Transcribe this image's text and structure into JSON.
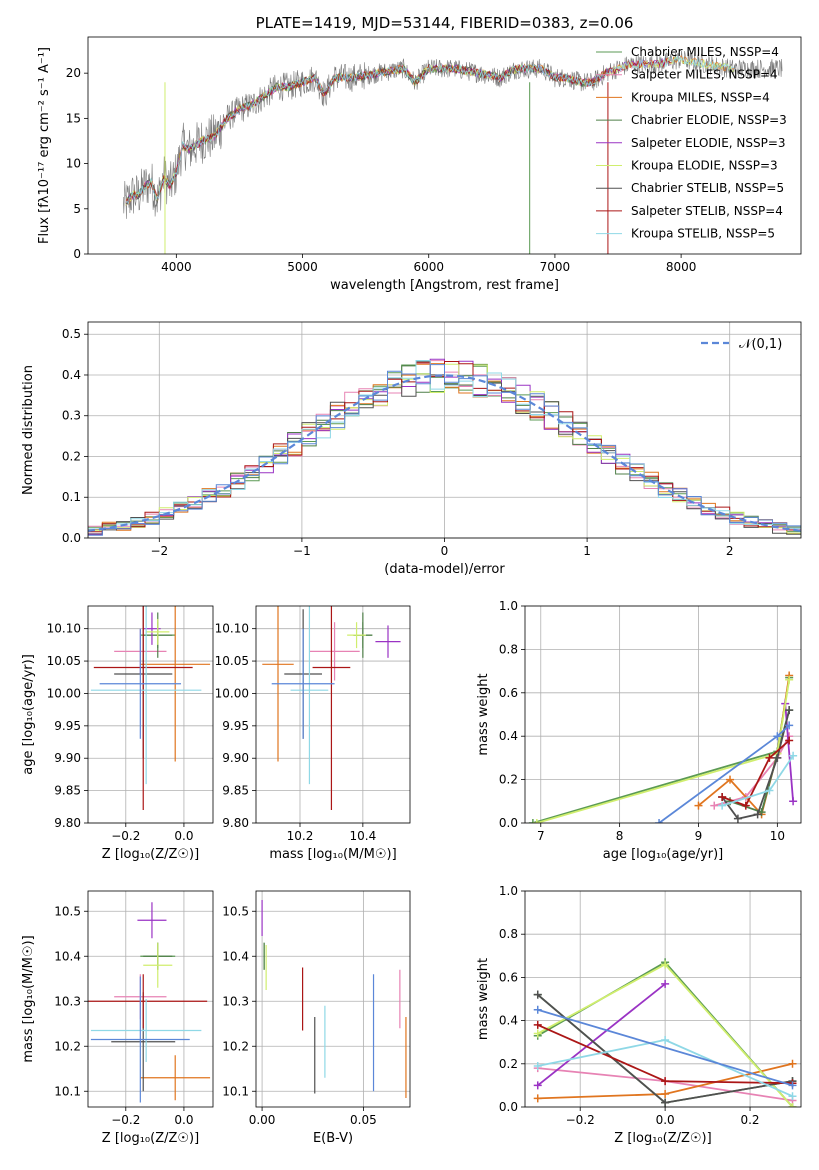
{
  "colors": [
    "#5b9a54",
    "#e783b4",
    "#e0751f",
    "#4f7f49",
    "#9a33c4",
    "#d0ee6e",
    "#505050",
    "#ab1616",
    "#8fd8e6",
    "#5b87d8"
  ],
  "chart_data": [
    {
      "id": "spectrum",
      "type": "line",
      "title": "PLATE=1419, MJD=53144, FIBERID=0383, z=0.06",
      "xlabel": "wavelength [Angstrom, rest frame]",
      "ylabel": "Flux [fλ10⁻¹⁷ erg cm⁻² s⁻¹ A⁻¹]",
      "xlim": [
        3300,
        8950
      ],
      "ylim": [
        0,
        24
      ],
      "xticks": [
        "4000",
        "5000",
        "6000",
        "7000",
        "8000"
      ],
      "yticks": [
        "0",
        "5",
        "10",
        "15",
        "20"
      ],
      "grid": false,
      "legend_position": "right",
      "series": [
        {
          "name": "Chabrier MILES, NSSP=4",
          "color": "#5b9a54"
        },
        {
          "name": "Salpeter MILES, NSSP=4",
          "color": "#e783b4"
        },
        {
          "name": "Kroupa MILES, NSSP=4",
          "color": "#e0751f"
        },
        {
          "name": "Chabrier ELODIE, NSSP=3",
          "color": "#4f7f49"
        },
        {
          "name": "Salpeter ELODIE, NSSP=3",
          "color": "#9a33c4"
        },
        {
          "name": "Kroupa ELODIE, NSSP=3",
          "color": "#d0ee6e"
        },
        {
          "name": "Chabrier STELIB, NSSP=5",
          "color": "#505050"
        },
        {
          "name": "Salpeter STELIB, NSSP=4",
          "color": "#ab1616"
        },
        {
          "name": "Kroupa STELIB, NSSP=5",
          "color": "#8fd8e6"
        }
      ],
      "data_shape": {
        "x": [
          3600,
          3650,
          3700,
          3750,
          3800,
          3850,
          3900,
          3950,
          4000,
          4050,
          4100,
          4200,
          4300,
          4400,
          4500,
          4600,
          4700,
          4800,
          4900,
          5000,
          5100,
          5175,
          5250,
          5400,
          5600,
          5800,
          5890,
          6000,
          6200,
          6400,
          6563,
          6700,
          6900,
          7000,
          7100,
          7200,
          7300,
          7400,
          7600,
          7800,
          8000,
          8200,
          8400,
          8600,
          8800
        ],
        "y": [
          5.5,
          6.5,
          6.5,
          7.5,
          8.0,
          6.0,
          8.5,
          7.5,
          9.0,
          12.0,
          11.5,
          12.5,
          13.0,
          15.0,
          16.0,
          16.5,
          17.5,
          18.5,
          18.5,
          19.0,
          19.5,
          17.5,
          19.5,
          19.5,
          20.0,
          20.5,
          19.0,
          20.5,
          20.5,
          20.0,
          19.5,
          20.5,
          20.5,
          19.5,
          19.5,
          19.0,
          19.0,
          20.0,
          21.0,
          21.0,
          21.5,
          21.0,
          20.5,
          20.5,
          20.5
        ]
      }
    },
    {
      "id": "residuals",
      "type": "histogram",
      "xlabel": "(data-model)/error",
      "ylabel": "Normed distribution",
      "xlim": [
        -2.5,
        2.5
      ],
      "ylim": [
        0,
        0.53
      ],
      "xticks": [
        "−2",
        "−1",
        "0",
        "1",
        "2"
      ],
      "yticks": [
        "0.0",
        "0.1",
        "0.2",
        "0.3",
        "0.4",
        "0.5"
      ],
      "grid": true,
      "legend_position": "top-right",
      "curve": {
        "name": "𝒩(0,1)",
        "color": "#5b87d8",
        "mean": 0,
        "sigma": 1
      },
      "bin_width": 0.1
    },
    {
      "id": "age-vs-Z",
      "type": "errorbar",
      "xlabel": "Z [log₁₀(Z/Z☉)]",
      "ylabel": "age  [log₁₀(age/yr)]",
      "xlim": [
        -0.33,
        0.1
      ],
      "ylim": [
        9.8,
        10.135
      ],
      "xticks": [
        "−0.2",
        "0.0"
      ],
      "yticks": [
        "9.80",
        "9.85",
        "9.90",
        "9.95",
        "10.00",
        "10.05",
        "10.10"
      ],
      "grid": true,
      "points": [
        {
          "color": "#5b9a54",
          "x": -0.09,
          "xerr": 0.06,
          "y": 10.09,
          "yerr": 0.02
        },
        {
          "color": "#e783b4",
          "x": -0.15,
          "xerr": 0.09,
          "y": 10.065,
          "yerr": 0.035
        },
        {
          "color": "#e0751f",
          "x": -0.03,
          "xerr": 0.12,
          "y": 10.045,
          "yerr": 0.15
        },
        {
          "color": "#4f7f49",
          "x": -0.09,
          "xerr": 0.05,
          "y": 10.09,
          "yerr": 0.035
        },
        {
          "color": "#9a33c4",
          "x": -0.11,
          "xerr": 0.03,
          "y": 10.1,
          "yerr": 0.025
        },
        {
          "color": "#d0ee6e",
          "x": -0.09,
          "xerr": 0.04,
          "y": 10.095,
          "yerr": 0.02
        },
        {
          "color": "#505050",
          "x": -0.14,
          "xerr": 0.1,
          "y": 10.03,
          "yerr": 0.13
        },
        {
          "color": "#ab1616",
          "x": -0.14,
          "xerr": 0.17,
          "y": 10.04,
          "yerr": 0.22
        },
        {
          "color": "#8fd8e6",
          "x": -0.13,
          "xerr": 0.19,
          "y": 10.005,
          "yerr": 0.145
        },
        {
          "color": "#5b87d8",
          "x": -0.15,
          "xerr": 0.14,
          "y": 10.015,
          "yerr": 0.085
        }
      ]
    },
    {
      "id": "age-vs-mass",
      "type": "errorbar",
      "xlabel": "mass [log₁₀(M/M☉)]",
      "ylabel": "",
      "xlim": [
        10.06,
        10.55
      ],
      "ylim": [
        9.8,
        10.135
      ],
      "xticks": [
        "10.2",
        "10.4"
      ],
      "yticks": [
        "9.80",
        "9.85",
        "9.90",
        "9.95",
        "10.00",
        "10.05",
        "10.10"
      ],
      "grid": true,
      "points": [
        {
          "color": "#5b9a54",
          "x": 10.4,
          "xerr": 0.03,
          "y": 10.09,
          "yerr": 0.02
        },
        {
          "color": "#e783b4",
          "x": 10.31,
          "xerr": 0.08,
          "y": 10.065,
          "yerr": 0.045
        },
        {
          "color": "#e0751f",
          "x": 10.13,
          "xerr": 0.05,
          "y": 10.045,
          "yerr": 0.15
        },
        {
          "color": "#4f7f49",
          "x": 10.4,
          "xerr": 0.03,
          "y": 10.09,
          "yerr": 0.035
        },
        {
          "color": "#9a33c4",
          "x": 10.48,
          "xerr": 0.04,
          "y": 10.08,
          "yerr": 0.025
        },
        {
          "color": "#d0ee6e",
          "x": 10.38,
          "xerr": 0.03,
          "y": 10.09,
          "yerr": 0.02
        },
        {
          "color": "#505050",
          "x": 10.21,
          "xerr": 0.06,
          "y": 10.03,
          "yerr": 0.1
        },
        {
          "color": "#ab1616",
          "x": 10.3,
          "xerr": 0.06,
          "y": 10.04,
          "yerr": 0.22
        },
        {
          "color": "#8fd8e6",
          "x": 10.23,
          "xerr": 0.06,
          "y": 10.005,
          "yerr": 0.145
        },
        {
          "color": "#5b87d8",
          "x": 10.21,
          "xerr": 0.1,
          "y": 10.015,
          "yerr": 0.085
        }
      ]
    },
    {
      "id": "massweight-vs-age",
      "type": "line",
      "xlabel": "age  [log₁₀(age/yr)]",
      "ylabel": "mass weight",
      "xlim": [
        6.8,
        10.3
      ],
      "ylim": [
        0,
        1.0
      ],
      "xticks": [
        "7",
        "8",
        "9",
        "10"
      ],
      "yticks": [
        "0.0",
        "0.2",
        "0.4",
        "0.6",
        "0.8",
        "1.0"
      ],
      "grid": true,
      "series": [
        {
          "color": "#5b9a54",
          "x": [
            6.9,
            10.0,
            10.15
          ],
          "y": [
            0.0,
            0.33,
            0.67
          ]
        },
        {
          "color": "#e783b4",
          "x": [
            9.2,
            9.6,
            10.0,
            10.15
          ],
          "y": [
            0.08,
            0.12,
            0.3,
            0.4
          ]
        },
        {
          "color": "#e0751f",
          "x": [
            9.0,
            9.4,
            9.8,
            10.0,
            10.15
          ],
          "y": [
            0.08,
            0.2,
            0.04,
            0.32,
            0.68
          ]
        },
        {
          "color": "#4f7f49",
          "x": [
            9.4,
            9.8,
            10.15
          ],
          "y": [
            0.1,
            0.05,
            0.52
          ]
        },
        {
          "color": "#9a33c4",
          "x": [
            10.1,
            10.2
          ],
          "y": [
            0.55,
            0.1
          ]
        },
        {
          "color": "#d0ee6e",
          "x": [
            6.95,
            10.0,
            10.15
          ],
          "y": [
            0.0,
            0.32,
            0.66
          ]
        },
        {
          "color": "#505050",
          "x": [
            9.3,
            9.5,
            9.75,
            10.0,
            10.15
          ],
          "y": [
            0.12,
            0.02,
            0.04,
            0.3,
            0.52
          ]
        },
        {
          "color": "#ab1616",
          "x": [
            9.3,
            9.6,
            9.9,
            10.15
          ],
          "y": [
            0.12,
            0.08,
            0.3,
            0.38
          ]
        },
        {
          "color": "#8fd8e6",
          "x": [
            9.3,
            9.9,
            10.2
          ],
          "y": [
            0.08,
            0.15,
            0.31
          ]
        },
        {
          "color": "#5b87d8",
          "x": [
            8.5,
            10.0,
            10.15
          ],
          "y": [
            0.0,
            0.4,
            0.45
          ]
        }
      ]
    },
    {
      "id": "mass-vs-Z",
      "type": "errorbar",
      "xlabel": "Z [log₁₀(Z/Z☉)]",
      "ylabel": "mass [log₁₀(M/M☉)]",
      "xlim": [
        -0.33,
        0.1
      ],
      "ylim": [
        10.065,
        10.545
      ],
      "xticks": [
        "−0.2",
        "0.0"
      ],
      "yticks": [
        "10.1",
        "10.2",
        "10.3",
        "10.4",
        "10.5"
      ],
      "grid": true,
      "points": [
        {
          "color": "#5b9a54",
          "x": -0.09,
          "xerr": 0.06,
          "y": 10.4,
          "yerr": 0.03
        },
        {
          "color": "#e783b4",
          "x": -0.15,
          "xerr": 0.09,
          "y": 10.31,
          "yerr": 0.05
        },
        {
          "color": "#e0751f",
          "x": -0.03,
          "xerr": 0.12,
          "y": 10.13,
          "yerr": 0.05
        },
        {
          "color": "#4f7f49",
          "x": -0.09,
          "xerr": 0.05,
          "y": 10.4,
          "yerr": 0.03
        },
        {
          "color": "#9a33c4",
          "x": -0.11,
          "xerr": 0.05,
          "y": 10.48,
          "yerr": 0.04
        },
        {
          "color": "#d0ee6e",
          "x": -0.09,
          "xerr": 0.05,
          "y": 10.38,
          "yerr": 0.05
        },
        {
          "color": "#505050",
          "x": -0.14,
          "xerr": 0.11,
          "y": 10.21,
          "yerr": 0.11
        },
        {
          "color": "#ab1616",
          "x": -0.14,
          "xerr": 0.22,
          "y": 10.3,
          "yerr": 0.06
        },
        {
          "color": "#8fd8e6",
          "x": -0.13,
          "xerr": 0.19,
          "y": 10.235,
          "yerr": 0.07
        },
        {
          "color": "#5b87d8",
          "x": -0.15,
          "xerr": 0.17,
          "y": 10.215,
          "yerr": 0.14
        }
      ]
    },
    {
      "id": "mass-vs-EBV",
      "type": "errorbar",
      "xlabel": "E(B-V)",
      "ylabel": "",
      "xlim": [
        -0.003,
        0.073
      ],
      "ylim": [
        10.065,
        10.545
      ],
      "xticks": [
        "0.00",
        "0.05"
      ],
      "yticks": [
        "10.1",
        "10.2",
        "10.3",
        "10.4",
        "10.5"
      ],
      "grid": true,
      "points": [
        {
          "color": "#5b9a54",
          "x": 0.001,
          "xerr": 0,
          "y": 10.4,
          "yerr": 0.03
        },
        {
          "color": "#e783b4",
          "x": 0.068,
          "xerr": 0,
          "y": 10.305,
          "yerr": 0.065
        },
        {
          "color": "#e0751f",
          "x": 0.071,
          "xerr": 0,
          "y": 10.175,
          "yerr": 0.09
        },
        {
          "color": "#4f7f49",
          "x": 0.001,
          "xerr": 0,
          "y": 10.4,
          "yerr": 0.03
        },
        {
          "color": "#9a33c4",
          "x": 0.0,
          "xerr": 0,
          "y": 10.485,
          "yerr": 0.04
        },
        {
          "color": "#d0ee6e",
          "x": 0.002,
          "xerr": 0,
          "y": 10.375,
          "yerr": 0.05
        },
        {
          "color": "#505050",
          "x": 0.026,
          "xerr": 0,
          "y": 10.18,
          "yerr": 0.085
        },
        {
          "color": "#ab1616",
          "x": 0.02,
          "xerr": 0,
          "y": 10.305,
          "yerr": 0.07
        },
        {
          "color": "#8fd8e6",
          "x": 0.031,
          "xerr": 0,
          "y": 10.21,
          "yerr": 0.08
        },
        {
          "color": "#5b87d8",
          "x": 0.055,
          "xerr": 0,
          "y": 10.23,
          "yerr": 0.13
        }
      ]
    },
    {
      "id": "massweight-vs-Z",
      "type": "line",
      "xlabel": "Z [log₁₀(Z/Z☉)]",
      "ylabel": "mass weight",
      "xlim": [
        -0.33,
        0.32
      ],
      "ylim": [
        0,
        1.0
      ],
      "xticks": [
        "−0.2",
        "0.0",
        "0.2"
      ],
      "yticks": [
        "0.0",
        "0.2",
        "0.4",
        "0.6",
        "0.8",
        "1.0"
      ],
      "grid": true,
      "series": [
        {
          "color": "#5b9a54",
          "x": [
            -0.3,
            0.0,
            0.3
          ],
          "y": [
            0.33,
            0.67,
            0.0
          ]
        },
        {
          "color": "#e783b4",
          "x": [
            -0.3,
            0.0,
            0.3
          ],
          "y": [
            0.18,
            0.12,
            0.03
          ]
        },
        {
          "color": "#e0751f",
          "x": [
            -0.3,
            0.0,
            0.3
          ],
          "y": [
            0.04,
            0.06,
            0.2
          ]
        },
        {
          "color": "#4f7f49",
          "x": [
            -0.3,
            0.0,
            0.3
          ],
          "y": [
            0.52,
            0.02,
            0.12
          ]
        },
        {
          "color": "#9a33c4",
          "x": [
            -0.3,
            0.0
          ],
          "y": [
            0.1,
            0.57
          ]
        },
        {
          "color": "#d0ee6e",
          "x": [
            -0.3,
            0.0,
            0.3
          ],
          "y": [
            0.34,
            0.66,
            0.0
          ]
        },
        {
          "color": "#505050",
          "x": [
            -0.3,
            0.0,
            0.3
          ],
          "y": [
            0.52,
            0.02,
            0.12
          ]
        },
        {
          "color": "#ab1616",
          "x": [
            -0.3,
            0.0,
            0.3
          ],
          "y": [
            0.38,
            0.12,
            0.11
          ]
        },
        {
          "color": "#8fd8e6",
          "x": [
            -0.3,
            0.0,
            0.3
          ],
          "y": [
            0.19,
            0.31,
            0.05
          ]
        },
        {
          "color": "#5b87d8",
          "x": [
            -0.3,
            0.3
          ],
          "y": [
            0.45,
            0.1
          ]
        }
      ]
    }
  ]
}
